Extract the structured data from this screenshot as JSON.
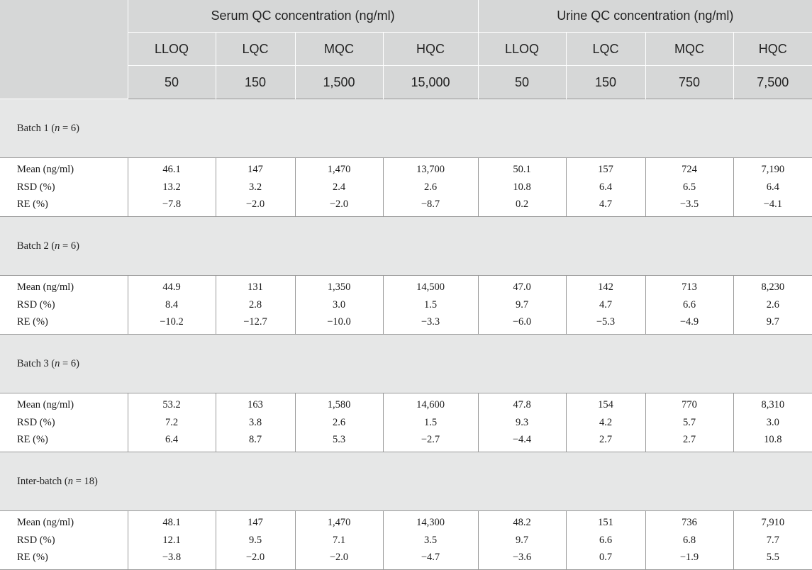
{
  "header": {
    "serum_group": "Serum QC concentration (ng/ml)",
    "urine_group": "Urine QC concentration (ng/ml)",
    "levels": [
      "LLOQ",
      "LQC",
      "MQC",
      "HQC",
      "LLOQ",
      "LQC",
      "MQC",
      "HQC"
    ],
    "concentrations": [
      "50",
      "150",
      "1,500",
      "15,000",
      "50",
      "150",
      "750",
      "7,500"
    ]
  },
  "row_labels": [
    "Mean (ng/ml)",
    "RSD (%)",
    "RE (%)"
  ],
  "batches": [
    {
      "label_prefix": "Batch 1 (",
      "n_symbol": "n",
      "label_suffix": " = 6)",
      "cells": [
        [
          "46.1",
          "13.2",
          "−7.8"
        ],
        [
          "147",
          "3.2",
          "−2.0"
        ],
        [
          "1,470",
          "2.4",
          "−2.0"
        ],
        [
          "13,700",
          "2.6",
          "−8.7"
        ],
        [
          "50.1",
          "10.8",
          "0.2"
        ],
        [
          "157",
          "6.4",
          "4.7"
        ],
        [
          "724",
          "6.5",
          "−3.5"
        ],
        [
          "7,190",
          "6.4",
          "−4.1"
        ]
      ]
    },
    {
      "label_prefix": "Batch 2 (",
      "n_symbol": "n",
      "label_suffix": " = 6)",
      "cells": [
        [
          "44.9",
          "8.4",
          "−10.2"
        ],
        [
          "131",
          "2.8",
          "−12.7"
        ],
        [
          "1,350",
          "3.0",
          "−10.0"
        ],
        [
          "14,500",
          "1.5",
          "−3.3"
        ],
        [
          "47.0",
          "9.7",
          "−6.0"
        ],
        [
          "142",
          "4.7",
          "−5.3"
        ],
        [
          "713",
          "6.6",
          "−4.9"
        ],
        [
          "8,230",
          "2.6",
          "9.7"
        ]
      ]
    },
    {
      "label_prefix": "Batch 3 (",
      "n_symbol": "n",
      "label_suffix": " = 6)",
      "cells": [
        [
          "53.2",
          "7.2",
          "6.4"
        ],
        [
          "163",
          "3.8",
          "8.7"
        ],
        [
          "1,580",
          "2.6",
          "5.3"
        ],
        [
          "14,600",
          "1.5",
          "−2.7"
        ],
        [
          "47.8",
          "9.3",
          "−4.4"
        ],
        [
          "154",
          "4.2",
          "2.7"
        ],
        [
          "770",
          "5.7",
          "2.7"
        ],
        [
          "8,310",
          "3.0",
          "10.8"
        ]
      ]
    },
    {
      "label_prefix": "Inter-batch (",
      "n_symbol": "n",
      "label_suffix": " = 18)",
      "cells": [
        [
          "48.1",
          "12.1",
          "−3.8"
        ],
        [
          "147",
          "9.5",
          "−2.0"
        ],
        [
          "1,470",
          "7.1",
          "−2.0"
        ],
        [
          "14,300",
          "3.5",
          "−4.7"
        ],
        [
          "48.2",
          "9.7",
          "−3.6"
        ],
        [
          "151",
          "6.6",
          "0.7"
        ],
        [
          "736",
          "6.8",
          "−1.9"
        ],
        [
          "7,910",
          "7.7",
          "5.5"
        ]
      ]
    }
  ]
}
